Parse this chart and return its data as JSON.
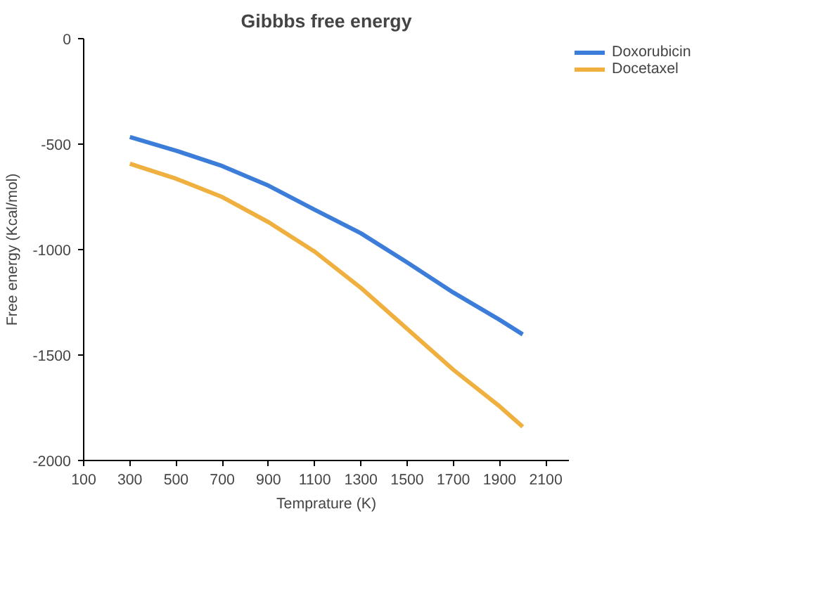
{
  "chart_data": {
    "type": "line",
    "title": "Gibbbs free energy",
    "xlabel": "Temprature (K)",
    "ylabel": "Free energy (Kcal/mol)",
    "xlim": [
      100,
      2200
    ],
    "ylim": [
      -2000,
      0
    ],
    "xticks": [
      100,
      300,
      500,
      700,
      900,
      1100,
      1300,
      1500,
      1700,
      1900,
      2100
    ],
    "yticks": [
      -2000,
      -1500,
      -1000,
      -500,
      0
    ],
    "grid": false,
    "legend": "top right",
    "marker": "none",
    "line_style": "solid",
    "x": [
      300,
      500,
      700,
      900,
      1100,
      1300,
      1500,
      1700,
      1900,
      2000
    ],
    "series": [
      {
        "name": "Doxorubicin",
        "color": "#3b7dd8",
        "values": [
          -466,
          -531,
          -604,
          -697,
          -811,
          -923,
          -1061,
          -1204,
          -1333,
          -1402
        ]
      },
      {
        "name": "Docetaxel",
        "color": "#f0b040",
        "values": [
          -593,
          -664,
          -751,
          -870,
          -1010,
          -1182,
          -1376,
          -1570,
          -1743,
          -1840
        ]
      }
    ]
  }
}
